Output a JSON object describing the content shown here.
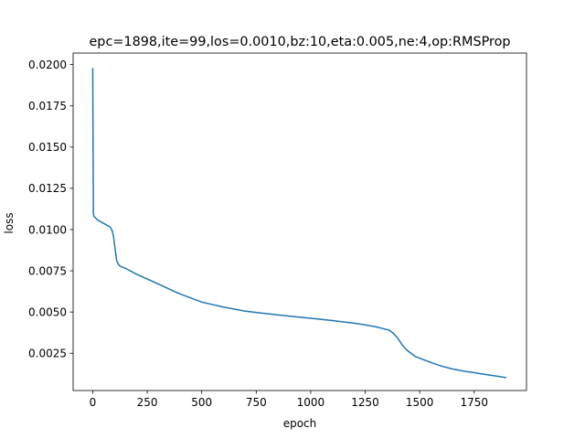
{
  "chart_data": {
    "type": "line",
    "title": "epc=1898,ite=99,los=0.0010,bz:10,eta:0.005,ne:4,op:RMSProp",
    "xlabel": "epoch",
    "ylabel": "loss",
    "xlim": [
      -90,
      1990
    ],
    "ylim": [
      0.00024,
      0.0207
    ],
    "x_ticks": [
      0,
      250,
      500,
      750,
      1000,
      1250,
      1500,
      1750
    ],
    "x_tick_labels": [
      "0",
      "250",
      "500",
      "750",
      "1000",
      "1250",
      "1500",
      "1750"
    ],
    "y_ticks": [
      0.0025,
      0.005,
      0.0075,
      0.01,
      0.0125,
      0.015,
      0.0175,
      0.02
    ],
    "y_tick_labels": [
      "0.0025",
      "0.0050",
      "0.0075",
      "0.0100",
      "0.0125",
      "0.0150",
      "0.0175",
      "0.0200"
    ],
    "grid": false,
    "legend": "none",
    "series_color": "#1f77b4",
    "series": [
      {
        "x": [
          0,
          1,
          3,
          5,
          10,
          20,
          40,
          60,
          80,
          90,
          95,
          100,
          105,
          110,
          120,
          130,
          150,
          200,
          250,
          300,
          350,
          400,
          450,
          500,
          600,
          700,
          800,
          900,
          1000,
          1100,
          1200,
          1250,
          1300,
          1330,
          1360,
          1380,
          1400,
          1420,
          1440,
          1460,
          1480,
          1500,
          1550,
          1600,
          1650,
          1700,
          1750,
          1800,
          1850,
          1898
        ],
        "y": [
          0.0198,
          0.0165,
          0.011,
          0.0108,
          0.01075,
          0.0106,
          0.01045,
          0.0103,
          0.01015,
          0.0099,
          0.0096,
          0.0091,
          0.0086,
          0.0081,
          0.00785,
          0.00775,
          0.00765,
          0.0073,
          0.007,
          0.0067,
          0.0064,
          0.0061,
          0.00585,
          0.0056,
          0.0053,
          0.00505,
          0.0049,
          0.00475,
          0.00462,
          0.00448,
          0.00432,
          0.00422,
          0.0041,
          0.004,
          0.0039,
          0.0037,
          0.0034,
          0.003,
          0.0027,
          0.0025,
          0.0023,
          0.0022,
          0.00195,
          0.00172,
          0.00155,
          0.00142,
          0.00132,
          0.00122,
          0.00112,
          0.00102
        ]
      }
    ]
  }
}
